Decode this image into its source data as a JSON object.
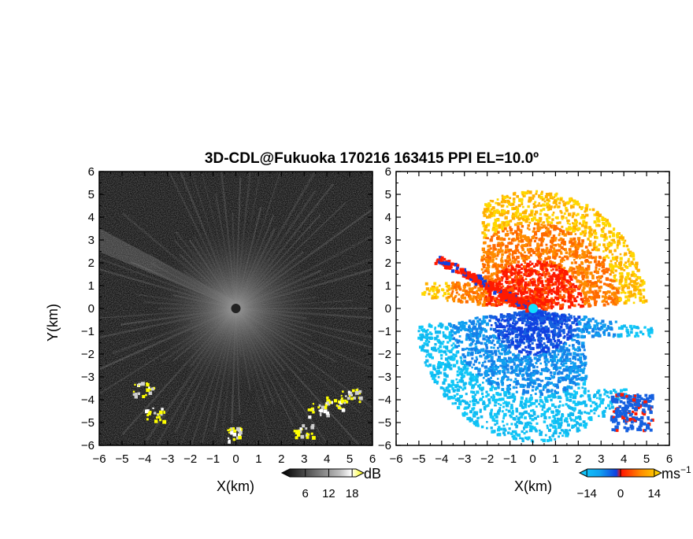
{
  "title": "3D-CDL@Fukuoka 170216 163415 PPI EL=10.0º",
  "chart_data": [
    {
      "type": "heatmap",
      "panel": "left",
      "quantity": "reflectivity",
      "xlabel": "X(km)",
      "ylabel": "Y(km)",
      "xlim": [
        -6,
        6
      ],
      "ylim": [
        -6,
        6
      ],
      "xticks": [
        "−6",
        "−5",
        "−4",
        "−3",
        "−2",
        "−1",
        "0",
        "1",
        "2",
        "3",
        "4",
        "5",
        "6"
      ],
      "yticks": [
        "6",
        "5",
        "4",
        "3",
        "2",
        "1",
        "0",
        "−1",
        "−2",
        "−3",
        "−4",
        "−5",
        "−6"
      ],
      "colorbar": {
        "unit": "dB",
        "ticks": [
          "6",
          "12",
          "18"
        ],
        "range": [
          0,
          21
        ],
        "colormap": "grayscale-to-yellow"
      },
      "features": [
        {
          "label": "strong echo cluster",
          "x": -4.1,
          "y": -3.5
        },
        {
          "label": "strong echo cluster",
          "x": -3.6,
          "y": -4.6
        },
        {
          "label": "strong echo cluster",
          "x": -0.2,
          "y": -5.5
        },
        {
          "label": "strong echo cluster",
          "x": 2.9,
          "y": -5.3
        },
        {
          "label": "strong echo cluster",
          "x": 3.6,
          "y": -4.4
        },
        {
          "label": "strong echo cluster",
          "x": 4.4,
          "y": -4.1
        },
        {
          "label": "strong echo cluster",
          "x": 5.0,
          "y": -3.8
        }
      ]
    },
    {
      "type": "heatmap",
      "panel": "right",
      "quantity": "Doppler velocity",
      "xlabel": "X(km)",
      "xlim": [
        -6,
        6
      ],
      "ylim": [
        -6,
        6
      ],
      "xticks": [
        "−6",
        "−5",
        "−4",
        "−3",
        "−2",
        "−1",
        "0",
        "1",
        "2",
        "3",
        "4",
        "5",
        "6"
      ],
      "yticks": [
        "6",
        "5",
        "4",
        "3",
        "2",
        "1",
        "0",
        "−1",
        "−2",
        "−3",
        "−4",
        "−5",
        "−6"
      ],
      "colorbar": {
        "unit": "ms",
        "unit_exponent": "−1",
        "ticks": [
          "−14",
          "0",
          "14"
        ],
        "range": [
          -17,
          17
        ],
        "colormap": "cyan-blue-red-orange-yellow"
      },
      "regions": [
        {
          "label": "positive velocity (receding)",
          "y_range": [
            0,
            5.2
          ],
          "color": "#ff6a00"
        },
        {
          "label": "negative velocity (approaching)",
          "y_range": [
            -5.7,
            0
          ],
          "color": "#1560e0"
        }
      ]
    }
  ],
  "colors": {
    "background": "#ffffff",
    "radar_bg_dark": "#101010",
    "echo_strong": "#ffff00",
    "vel_red": "#ff1a00",
    "vel_orange": "#ff8c00",
    "vel_yellow": "#ffd700",
    "vel_blue": "#1560e0",
    "vel_cyan": "#10b8f0"
  }
}
